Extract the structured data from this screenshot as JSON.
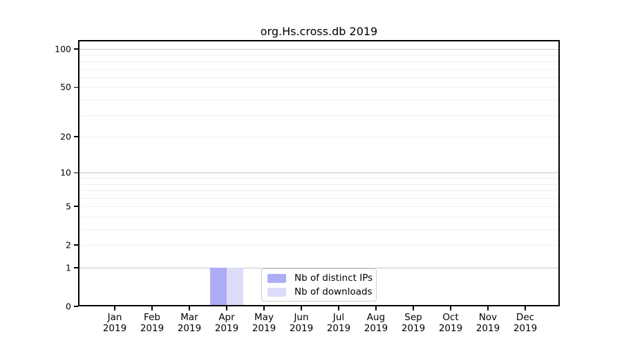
{
  "chart_data": {
    "type": "bar",
    "title": "org.Hs.cross.db 2019",
    "categories": [
      "Jan",
      "Feb",
      "Mar",
      "Apr",
      "May",
      "Jun",
      "Jul",
      "Aug",
      "Sep",
      "Oct",
      "Nov",
      "Dec"
    ],
    "x_year_label": "2019",
    "series": [
      {
        "name": "Nb of distinct IPs",
        "color": "#acacf7",
        "values": [
          0,
          0,
          0,
          1,
          0,
          0,
          0,
          0,
          0,
          0,
          0,
          0
        ]
      },
      {
        "name": "Nb of downloads",
        "color": "#dcdcf8",
        "values": [
          0,
          0,
          0,
          1,
          0,
          0,
          0,
          0,
          0,
          0,
          0,
          0
        ]
      }
    ],
    "yscale": "log1p",
    "ylim": [
      0,
      118
    ],
    "yticks": [
      0,
      1,
      2,
      5,
      10,
      20,
      50,
      100
    ],
    "gridlines": {
      "major": [
        1,
        10,
        100
      ],
      "minor": [
        2,
        3,
        4,
        5,
        6,
        7,
        8,
        9,
        20,
        30,
        40,
        50,
        60,
        70,
        80,
        90
      ],
      "major_color": "#c4c4c4",
      "minor_color": "#efefef"
    },
    "legend": {
      "position": "inside-bottom-center",
      "border_color": "#cccccc",
      "background": "#ffffff"
    },
    "axis_color": "#000000",
    "background_color": "#ffffff"
  }
}
